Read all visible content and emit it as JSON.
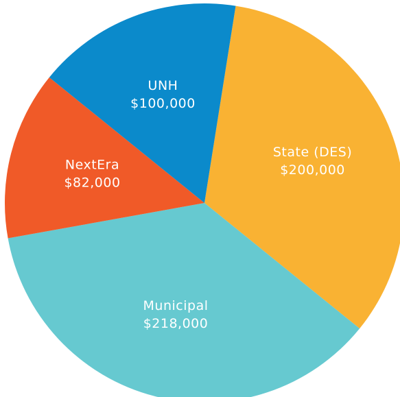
{
  "chart_data": {
    "type": "pie",
    "categories": [
      "State (DES)",
      "Municipal",
      "NextEra",
      "UNH"
    ],
    "values": [
      200000,
      218000,
      82000,
      100000
    ],
    "value_labels": [
      "$200,000",
      "$218,000",
      "$82,000",
      "$100,000"
    ],
    "colors": [
      "#f9b233",
      "#66c9d0",
      "#f05a28",
      "#0b8acb"
    ]
  }
}
